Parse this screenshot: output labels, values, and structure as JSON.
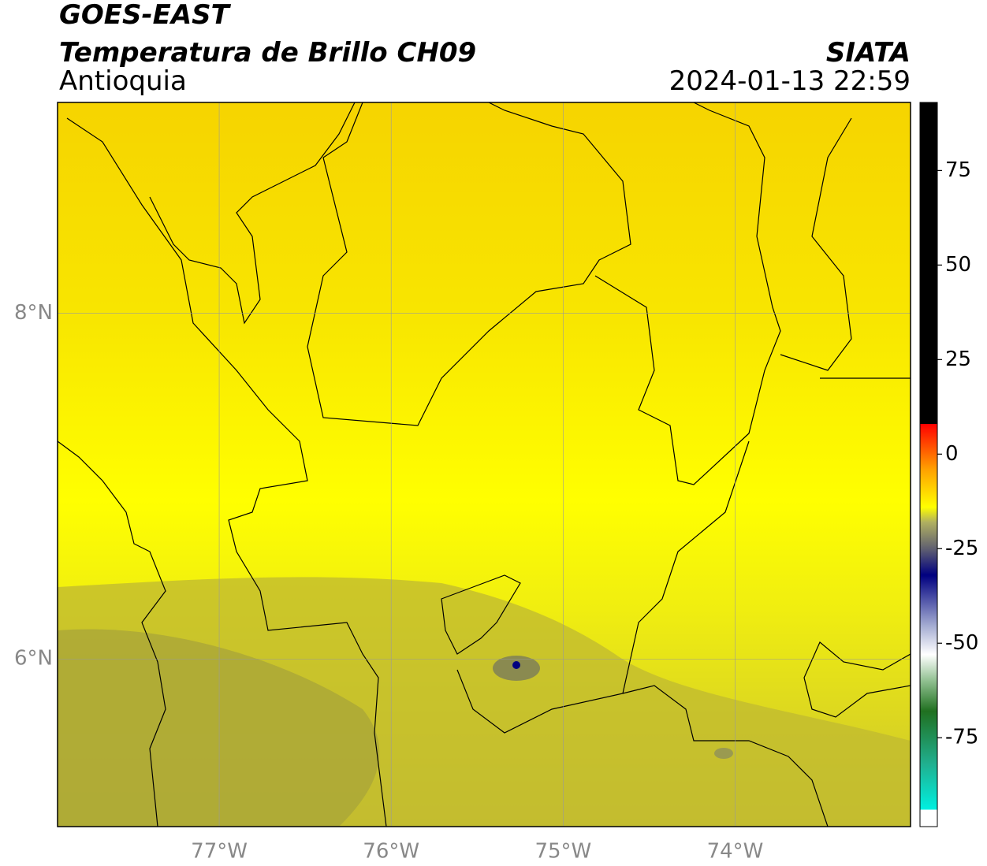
{
  "header": {
    "title": "GOES-EAST",
    "product": "Temperatura de Brillo CH09",
    "region": "Antioquia",
    "agency": "SIATA",
    "datetime": "2024-01-13 22:59"
  },
  "map": {
    "xlim": [
      -77.94,
      -72.98
    ],
    "ylim": [
      5.03,
      9.22
    ],
    "xticks": [
      {
        "value": -77,
        "label": "77°W"
      },
      {
        "value": -76,
        "label": "76°W"
      },
      {
        "value": -75,
        "label": "75°W"
      },
      {
        "value": -74,
        "label": "74°W"
      }
    ],
    "yticks": [
      {
        "value": 8,
        "label": "8°N"
      },
      {
        "value": 6,
        "label": "6°N"
      }
    ],
    "grid": true
  },
  "colorbar": {
    "lim": [
      -98.5,
      93
    ],
    "ticks": [
      75,
      50,
      25,
      0,
      -25,
      -50,
      -75
    ],
    "stops": [
      {
        "value": -98.5,
        "color": "#ffffff"
      },
      {
        "value": -94,
        "color": "#ffffff"
      },
      {
        "value": -94,
        "color": "#00f0e0"
      },
      {
        "value": -82,
        "color": "#20b090"
      },
      {
        "value": -68,
        "color": "#207020"
      },
      {
        "value": -60,
        "color": "#90c090"
      },
      {
        "value": -53,
        "color": "#ffffff"
      },
      {
        "value": -45,
        "color": "#a0a8d0"
      },
      {
        "value": -32,
        "color": "#000080"
      },
      {
        "value": -25,
        "color": "#606070"
      },
      {
        "value": -18,
        "color": "#b0b060"
      },
      {
        "value": -14,
        "color": "#ffff00"
      },
      {
        "value": -4,
        "color": "#ffa000"
      },
      {
        "value": 8,
        "color": "#ff0000"
      },
      {
        "value": 8,
        "color": "#000000"
      },
      {
        "value": 93,
        "color": "#000000"
      }
    ]
  }
}
